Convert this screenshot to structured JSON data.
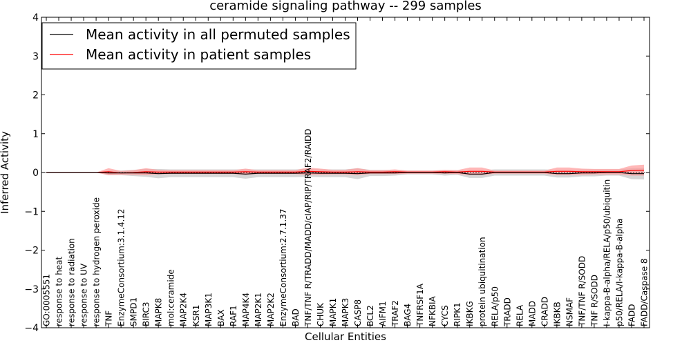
{
  "chart_data": {
    "type": "line",
    "title": "ceramide signaling pathway -- 299 samples",
    "xlabel": "Cellular Entities",
    "ylabel": "Inferred Activity",
    "ylim": [
      -4,
      4
    ],
    "yticks": [
      -4,
      -3,
      -2,
      -1,
      0,
      1,
      2,
      3,
      4
    ],
    "ytick_labels": [
      "−4",
      "−3",
      "−2",
      "−1",
      "0",
      "1",
      "2",
      "3",
      "4"
    ],
    "legend_position": "top-left",
    "categories": [
      "GO:0005551",
      "response to heat",
      "response to radiation",
      "response to UV",
      "response to hydrogen peroxide",
      "TNF",
      "EnzymeConsortium:3.1.4.12",
      "SMPD1",
      "BIRC3",
      "MAPK8",
      "mol:ceramide",
      "MAP2K4",
      "KSR1",
      "MAP3K1",
      "BAX",
      "RAF1",
      "MAP4K4",
      "MAP2K1",
      "MAP2K2",
      "EnzymeConsortium:2.7.1.37",
      "BAD",
      "TNF/TNF R/TRADD/MADD/cIAP/RIP/TRAF2/RAIDD",
      "CHUK",
      "MAPK1",
      "MAPK3",
      "CASP8",
      "BCL2",
      "AIFM1",
      "TRAF2",
      "BAG4",
      "TNFRSF1A",
      "NFKBIA",
      "CYCS",
      "RIPK1",
      "IKBKG",
      "protein ubiquitination",
      "RELA/p50",
      "TRADD",
      "RELA",
      "MADD",
      "CRADD",
      "IKBKB",
      "NSMAF",
      "TNF/TNF R/SODD",
      "TNF R/SODD",
      "I-kappa-B-alpha/RELA/p50/ubiquitin",
      "p50/RELA/I-kappa-B-alpha",
      "FADD",
      "FADD/Caspase 8"
    ],
    "series": [
      {
        "name": "Mean activity in all permuted samples",
        "color": "#000000",
        "band_color": "#c8c8c8",
        "values": [
          0,
          0,
          0,
          0,
          0,
          -0.01,
          -0.01,
          -0.01,
          -0.01,
          -0.03,
          -0.02,
          -0.02,
          -0.02,
          -0.02,
          -0.02,
          -0.02,
          -0.04,
          -0.02,
          -0.02,
          -0.02,
          -0.02,
          -0.01,
          -0.02,
          -0.02,
          -0.02,
          -0.03,
          -0.01,
          -0.01,
          -0.01,
          0,
          0,
          0,
          -0.01,
          0,
          -0.04,
          -0.04,
          0,
          0,
          0,
          0,
          0,
          -0.03,
          -0.03,
          -0.01,
          -0.01,
          0,
          0,
          -0.03,
          -0.03
        ],
        "band": [
          0,
          0,
          0,
          0,
          0,
          0.06,
          0.06,
          0.08,
          0.1,
          0.12,
          0.1,
          0.1,
          0.1,
          0.1,
          0.1,
          0.1,
          0.12,
          0.1,
          0.1,
          0.1,
          0.1,
          0.1,
          0.1,
          0.1,
          0.1,
          0.14,
          0.08,
          0.08,
          0.07,
          0.05,
          0.05,
          0.05,
          0.07,
          0.06,
          0.1,
          0.1,
          0.08,
          0.08,
          0.08,
          0.08,
          0.08,
          0.1,
          0.1,
          0.09,
          0.09,
          0.08,
          0.08,
          0.14,
          0.15
        ]
      },
      {
        "name": "Mean activity in patient samples",
        "color": "#ff0000",
        "band_color": "#ff9a9a",
        "values": [
          0,
          0,
          0,
          0,
          0,
          0.02,
          -0.01,
          0,
          0.02,
          0.01,
          0.01,
          0.01,
          0.01,
          0.01,
          0.01,
          0.01,
          0.02,
          0.01,
          0.01,
          0.01,
          0.01,
          0.03,
          0.02,
          0.01,
          0.01,
          0.02,
          0.01,
          0.01,
          0.02,
          0.01,
          0.01,
          0.01,
          0.02,
          0.01,
          0.03,
          0.03,
          0.01,
          0.01,
          0.01,
          0.01,
          0.01,
          0.03,
          0.03,
          0.02,
          0.02,
          0.02,
          0.02,
          0.05,
          0.06
        ],
        "band": [
          0,
          0,
          0,
          0,
          0,
          0.09,
          0.05,
          0.06,
          0.09,
          0.06,
          0.05,
          0.05,
          0.05,
          0.05,
          0.05,
          0.05,
          0.08,
          0.05,
          0.05,
          0.05,
          0.05,
          0.1,
          0.08,
          0.06,
          0.06,
          0.09,
          0.05,
          0.05,
          0.06,
          0.04,
          0.04,
          0.04,
          0.05,
          0.05,
          0.1,
          0.1,
          0.04,
          0.04,
          0.04,
          0.04,
          0.04,
          0.1,
          0.1,
          0.08,
          0.07,
          0.07,
          0.07,
          0.13,
          0.14
        ]
      }
    ]
  }
}
